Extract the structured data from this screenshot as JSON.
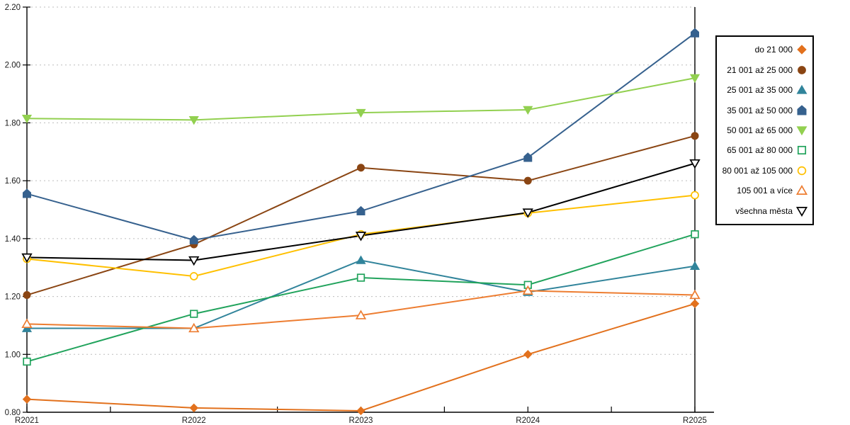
{
  "chart_data": {
    "type": "line",
    "title": "",
    "xlabel": "",
    "ylabel": "",
    "categories": [
      "R2021",
      "R2022",
      "R2023",
      "R2024",
      "R2025"
    ],
    "ylim": [
      0.8,
      2.2
    ],
    "ytick_step": 0.2,
    "ytick_labels": [
      "0.80",
      "1.00",
      "1.20",
      "1.40",
      "1.60",
      "1.80",
      "2.00",
      "2.20"
    ],
    "grid": "horizontal-dotted",
    "grid_color": "#BDBDBD",
    "axis_color": "#000000",
    "legend_position": "right",
    "series": [
      {
        "name": "do 21 000",
        "marker": "diamond",
        "fill": "solid",
        "color": "#E2711D",
        "values": [
          0.845,
          0.815,
          0.805,
          1.0,
          1.175
        ]
      },
      {
        "name": "21 001 až 25 000",
        "marker": "circle",
        "fill": "solid",
        "color": "#8A4513",
        "values": [
          1.205,
          1.38,
          1.645,
          1.6,
          1.755
        ]
      },
      {
        "name": "25 001 až 35 000",
        "marker": "triangle-up",
        "fill": "solid",
        "color": "#31849B",
        "values": [
          1.09,
          1.09,
          1.325,
          1.215,
          1.305
        ]
      },
      {
        "name": "35 001 až 50 000",
        "marker": "pentagon",
        "fill": "solid",
        "color": "#36618E",
        "values": [
          1.555,
          1.395,
          1.495,
          1.68,
          2.11
        ]
      },
      {
        "name": "50 001 až 65 000",
        "marker": "triangle-down",
        "fill": "solid",
        "color": "#92D050",
        "values": [
          1.815,
          1.81,
          1.835,
          1.845,
          1.955
        ]
      },
      {
        "name": "65 001 až 80 000",
        "marker": "square",
        "fill": "hollow",
        "color": "#21A35C",
        "values": [
          0.975,
          1.14,
          1.265,
          1.24,
          1.415
        ]
      },
      {
        "name": "80 001 až 105 000",
        "marker": "circle",
        "fill": "hollow",
        "color": "#FFC000",
        "values": [
          1.33,
          1.27,
          1.415,
          1.488,
          1.55
        ]
      },
      {
        "name": "105 001 a více",
        "marker": "triangle-up",
        "fill": "hollow",
        "color": "#ED7D31",
        "values": [
          1.105,
          1.09,
          1.135,
          1.22,
          1.205
        ]
      },
      {
        "name": "všechna města",
        "marker": "triangle-down",
        "fill": "hollow",
        "color": "#000000",
        "values": [
          1.335,
          1.325,
          1.41,
          1.49,
          1.66
        ]
      }
    ]
  }
}
